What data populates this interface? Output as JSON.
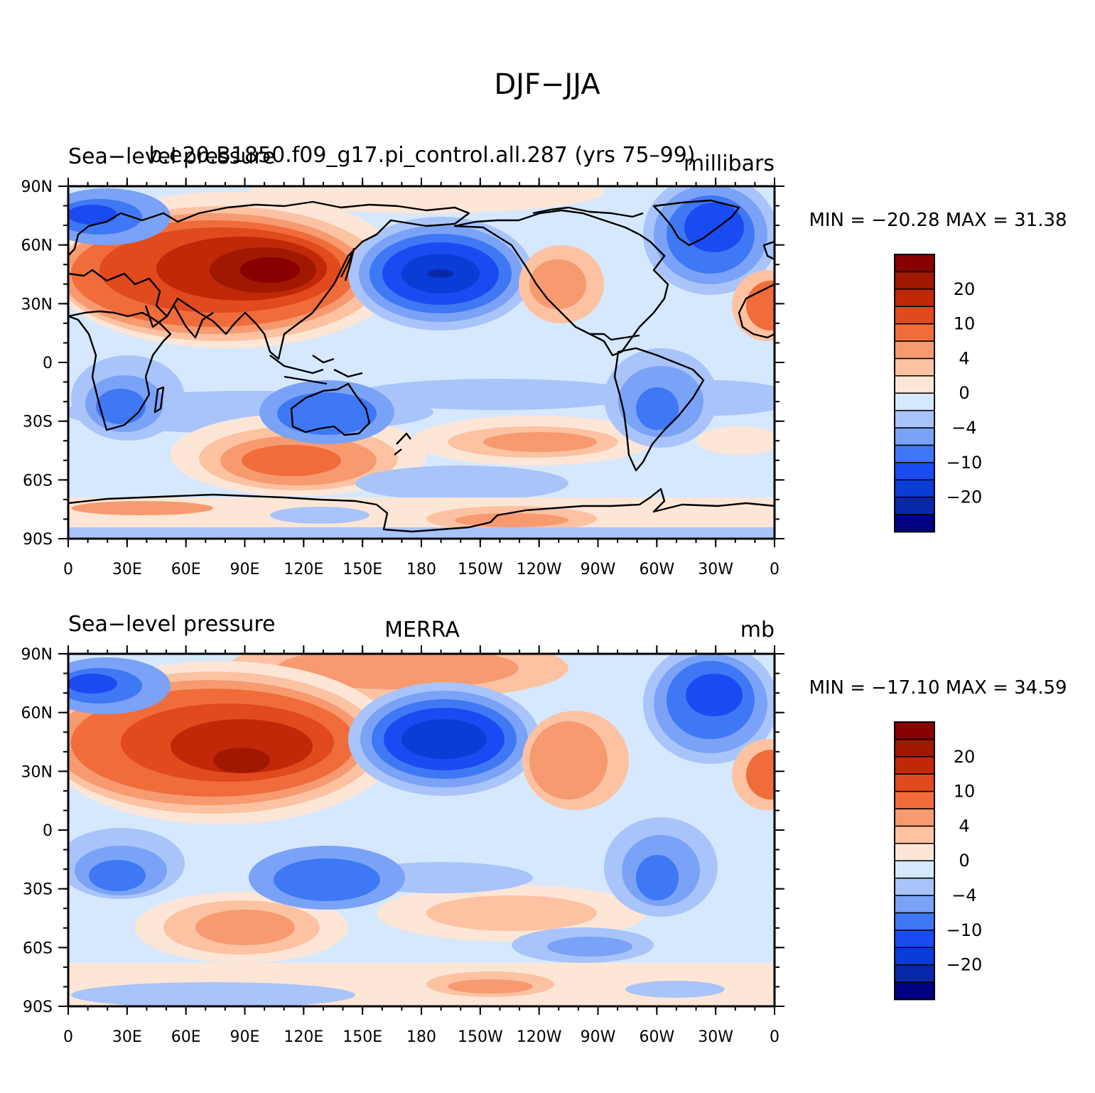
{
  "title": "DJF−JJA",
  "colormap": {
    "colors": [
      "#000080",
      "#0828a8",
      "#0a3cd6",
      "#1a4bf2",
      "#3f78f4",
      "#7aa2f6",
      "#a9c4fa",
      "#d6e8fd",
      "#fde6d6",
      "#fcc2a2",
      "#f79a70",
      "#f06c3a",
      "#e04a1c",
      "#c02808",
      "#a01800",
      "#880000"
    ],
    "tick_labels": [
      "20",
      "10",
      "4",
      "0",
      "−4",
      "−10",
      "−20"
    ]
  },
  "panels": [
    {
      "left_title": "Sea−level pressure",
      "center_title": "b.e20.B1850.f09_g17.pi_control.all.287 (yrs 75–99)",
      "units": "millibars",
      "minmax": "MIN = −20.28  MAX =   31.38"
    },
    {
      "left_title": "Sea−level pressure",
      "center_title": "MERRA",
      "units": "mb",
      "minmax": "MIN = −17.10  MAX =   34.59"
    }
  ],
  "lat_labels": [
    "90N",
    "60N",
    "30N",
    "0",
    "30S",
    "60S",
    "90S"
  ],
  "lon_labels": [
    "0",
    "30E",
    "60E",
    "90E",
    "120E",
    "150E",
    "180",
    "150W",
    "120W",
    "90W",
    "60W",
    "30W",
    "0"
  ]
}
